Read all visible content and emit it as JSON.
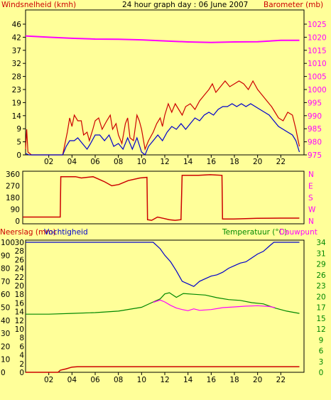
{
  "header": {
    "left_title": "Windsnelheid (kmh)",
    "center_title": "24 hour graph day : 06 June 2007",
    "right_title": "Barometer (mb)"
  },
  "panel3": {
    "left_title_1": "Neerslag (mm)",
    "left_title_2": "Vochtigheid",
    "right_title_1": "Temperatuur (°C)",
    "right_title_2": "Dauwpunt"
  },
  "colors": {
    "background": "#ffff99",
    "frame": "#000000",
    "grid": "#c8c870",
    "title_red": "#cc0000",
    "pressure": "#ff00ff",
    "wind_gust": "#cc0000",
    "wind_avg": "#0000cc",
    "direction": "#cc0000",
    "humidity": "#0000cc",
    "temperature": "#008800",
    "dewpoint": "#ff00ff",
    "rain": "#cc0000",
    "right_green": "#008800"
  },
  "chart_data": [
    {
      "type": "line",
      "x_ticks": [
        "02",
        "04",
        "06",
        "08",
        "10",
        "12",
        "14",
        "16",
        "18",
        "20",
        "22"
      ],
      "x_range_hours": [
        0,
        24
      ],
      "left_axis": {
        "ticks": [
          "0",
          "5",
          "9",
          "14",
          "19",
          "23",
          "28",
          "32",
          "37",
          "42",
          "46"
        ],
        "range": [
          0,
          46
        ]
      },
      "right_axis": {
        "ticks": [
          "975",
          "980",
          "985",
          "990",
          "995",
          "1000",
          "1005",
          "1010",
          "1015",
          "1020",
          "1025"
        ],
        "range": [
          975,
          1025
        ]
      },
      "series": [
        {
          "axis": "right",
          "points": [
            [
              0,
              1020.5
            ],
            [
              2,
              1020
            ],
            [
              4,
              1019.6
            ],
            [
              6,
              1019.3
            ],
            [
              8,
              1019.2
            ],
            [
              10,
              1019
            ],
            [
              12,
              1018.6
            ],
            [
              14,
              1018.2
            ],
            [
              16,
              1018
            ],
            [
              18,
              1018.2
            ],
            [
              20,
              1018.3
            ],
            [
              22,
              1018.8
            ],
            [
              23.6,
              1018.8
            ]
          ]
        },
        {
          "axis": "left",
          "points": [
            [
              0,
              2
            ],
            [
              0.1,
              9
            ],
            [
              0.2,
              1
            ],
            [
              0.5,
              0
            ],
            [
              3.2,
              0
            ],
            [
              3.4,
              4
            ],
            [
              3.6,
              8
            ],
            [
              3.8,
              13
            ],
            [
              4,
              10
            ],
            [
              4.2,
              14
            ],
            [
              4.5,
              12
            ],
            [
              4.8,
              12
            ],
            [
              5,
              7
            ],
            [
              5.3,
              8
            ],
            [
              5.5,
              5
            ],
            [
              5.8,
              9
            ],
            [
              6,
              12
            ],
            [
              6.3,
              13
            ],
            [
              6.6,
              9
            ],
            [
              7,
              12
            ],
            [
              7.3,
              14
            ],
            [
              7.5,
              9
            ],
            [
              7.8,
              11
            ],
            [
              8,
              7
            ],
            [
              8.3,
              4
            ],
            [
              8.6,
              11
            ],
            [
              8.8,
              13
            ],
            [
              9,
              6
            ],
            [
              9.3,
              5
            ],
            [
              9.6,
              14
            ],
            [
              9.8,
              12
            ],
            [
              10,
              9
            ],
            [
              10.3,
              2
            ],
            [
              10.6,
              5
            ],
            [
              11,
              8
            ],
            [
              11.3,
              11
            ],
            [
              11.6,
              13
            ],
            [
              11.8,
              10
            ],
            [
              12,
              14
            ],
            [
              12.3,
              18
            ],
            [
              12.6,
              15
            ],
            [
              12.9,
              18
            ],
            [
              13.2,
              16
            ],
            [
              13.5,
              14
            ],
            [
              13.8,
              17
            ],
            [
              14.2,
              18
            ],
            [
              14.6,
              16
            ],
            [
              15,
              19
            ],
            [
              15.4,
              21
            ],
            [
              15.8,
              23
            ],
            [
              16.1,
              25
            ],
            [
              16.4,
              22
            ],
            [
              16.8,
              24
            ],
            [
              17.2,
              26
            ],
            [
              17.6,
              24
            ],
            [
              18,
              25
            ],
            [
              18.4,
              26
            ],
            [
              18.8,
              25
            ],
            [
              19.2,
              23
            ],
            [
              19.6,
              26
            ],
            [
              20,
              23
            ],
            [
              20.4,
              21
            ],
            [
              20.8,
              19
            ],
            [
              21.2,
              17
            ],
            [
              21.5,
              15
            ],
            [
              21.8,
              13
            ],
            [
              22.2,
              12
            ],
            [
              22.6,
              15
            ],
            [
              23,
              14
            ],
            [
              23.3,
              9
            ],
            [
              23.5,
              5
            ],
            [
              23.6,
              3
            ]
          ]
        },
        {
          "axis": "left",
          "points": [
            [
              0,
              0.5
            ],
            [
              0.3,
              0
            ],
            [
              3.2,
              0
            ],
            [
              3.5,
              3
            ],
            [
              3.8,
              5
            ],
            [
              4.2,
              5
            ],
            [
              4.5,
              6
            ],
            [
              4.9,
              4
            ],
            [
              5.3,
              2
            ],
            [
              5.6,
              4
            ],
            [
              6,
              7
            ],
            [
              6.4,
              7
            ],
            [
              6.8,
              5
            ],
            [
              7.2,
              7
            ],
            [
              7.6,
              3
            ],
            [
              8,
              4
            ],
            [
              8.4,
              2
            ],
            [
              8.8,
              6
            ],
            [
              9.2,
              2
            ],
            [
              9.6,
              6
            ],
            [
              10,
              1
            ],
            [
              10.3,
              0
            ],
            [
              10.6,
              3
            ],
            [
              11,
              5
            ],
            [
              11.4,
              7
            ],
            [
              11.8,
              5
            ],
            [
              12.2,
              8
            ],
            [
              12.6,
              10
            ],
            [
              13,
              9
            ],
            [
              13.4,
              11
            ],
            [
              13.8,
              9
            ],
            [
              14.2,
              11
            ],
            [
              14.6,
              13
            ],
            [
              15,
              12
            ],
            [
              15.4,
              14
            ],
            [
              15.8,
              15
            ],
            [
              16.2,
              14
            ],
            [
              16.6,
              16
            ],
            [
              17,
              17
            ],
            [
              17.4,
              17
            ],
            [
              17.8,
              18
            ],
            [
              18.2,
              17
            ],
            [
              18.6,
              18
            ],
            [
              19,
              17
            ],
            [
              19.4,
              18
            ],
            [
              19.8,
              17
            ],
            [
              20.2,
              16
            ],
            [
              20.6,
              15
            ],
            [
              21,
              14
            ],
            [
              21.4,
              12
            ],
            [
              21.8,
              10
            ],
            [
              22.2,
              9
            ],
            [
              22.6,
              8
            ],
            [
              23,
              7
            ],
            [
              23.3,
              5
            ],
            [
              23.6,
              1
            ]
          ]
        }
      ]
    },
    {
      "type": "line",
      "x_range_hours": [
        0,
        24
      ],
      "left_axis": {
        "ticks": [
          "0",
          "90",
          "180",
          "270",
          "360"
        ],
        "range": [
          0,
          360
        ]
      },
      "right_axis_labels": [
        "N",
        "W",
        "S",
        "E",
        "N"
      ],
      "series": [
        {
          "axis": "left",
          "points": [
            [
              0,
              30
            ],
            [
              3.2,
              30
            ],
            [
              3.25,
              340
            ],
            [
              4.5,
              340
            ],
            [
              5,
              330
            ],
            [
              6,
              340
            ],
            [
              6.5,
              320
            ],
            [
              7,
              300
            ],
            [
              7.6,
              270
            ],
            [
              8.2,
              280
            ],
            [
              9,
              310
            ],
            [
              10,
              330
            ],
            [
              10.6,
              335
            ],
            [
              10.65,
              10
            ],
            [
              11,
              5
            ],
            [
              11.5,
              30
            ],
            [
              12,
              20
            ],
            [
              12.5,
              10
            ],
            [
              13,
              5
            ],
            [
              13.5,
              10
            ],
            [
              13.6,
              350
            ],
            [
              15,
              350
            ],
            [
              16,
              355
            ],
            [
              17,
              350
            ],
            [
              17.05,
              15
            ],
            [
              18,
              15
            ],
            [
              20,
              20
            ],
            [
              22,
              22
            ],
            [
              23.6,
              22
            ]
          ]
        }
      ]
    },
    {
      "type": "line",
      "x_ticks": [
        "02",
        "04",
        "06",
        "08",
        "10",
        "12",
        "14",
        "16",
        "18",
        "20",
        "22"
      ],
      "x_range_hours": [
        0,
        24
      ],
      "left_axis_rain": {
        "ticks": [
          "0",
          "2",
          "4",
          "6",
          "8",
          "10",
          "12",
          "14",
          "16",
          "18",
          "20",
          "22",
          "24",
          "26",
          "28",
          "30"
        ],
        "range": [
          0,
          30
        ]
      },
      "left_axis_humidity": {
        "ticks": [
          "0",
          "10",
          "20",
          "30",
          "40",
          "50",
          "60",
          "70",
          "80",
          "90",
          "100"
        ],
        "range": [
          0,
          100
        ]
      },
      "right_axis": {
        "ticks": [
          "0",
          "3",
          "6",
          "9",
          "12",
          "15",
          "17",
          "20",
          "23",
          "26",
          "29",
          "31",
          "34"
        ],
        "range": [
          0,
          34
        ]
      },
      "series": [
        {
          "axis": "humidity",
          "points": [
            [
              0,
              100
            ],
            [
              11,
              100
            ],
            [
              11.6,
              95
            ],
            [
              12,
              90
            ],
            [
              12.5,
              85
            ],
            [
              13,
              78
            ],
            [
              13.5,
              70
            ],
            [
              14,
              68
            ],
            [
              14.5,
              66
            ],
            [
              15,
              70
            ],
            [
              15.5,
              72
            ],
            [
              16,
              74
            ],
            [
              16.5,
              75
            ],
            [
              17,
              77
            ],
            [
              17.5,
              80
            ],
            [
              18,
              82
            ],
            [
              18.5,
              84
            ],
            [
              19,
              85
            ],
            [
              19.5,
              88
            ],
            [
              20,
              91
            ],
            [
              20.5,
              93
            ],
            [
              21,
              97
            ],
            [
              21.4,
              100
            ],
            [
              23.6,
              100
            ]
          ]
        },
        {
          "axis": "right",
          "points": [
            [
              0,
              15.2
            ],
            [
              2,
              15.2
            ],
            [
              4,
              15.4
            ],
            [
              6,
              15.6
            ],
            [
              8,
              16.0
            ],
            [
              10,
              17.0
            ],
            [
              11,
              18.4
            ],
            [
              11.6,
              19.2
            ],
            [
              12,
              20.5
            ],
            [
              12.4,
              20.8
            ],
            [
              13,
              19.6
            ],
            [
              13.6,
              20.6
            ],
            [
              14.5,
              20.4
            ],
            [
              15.5,
              20.2
            ],
            [
              16.5,
              19.5
            ],
            [
              17.5,
              19.0
            ],
            [
              18.5,
              18.8
            ],
            [
              19.5,
              18.2
            ],
            [
              20.5,
              17.9
            ],
            [
              21.5,
              16.8
            ],
            [
              22.5,
              16.0
            ],
            [
              23.6,
              15.4
            ]
          ]
        },
        {
          "axis": "right",
          "points": [
            [
              11,
              18.3
            ],
            [
              11.6,
              18.9
            ],
            [
              12,
              18.4
            ],
            [
              12.5,
              17.5
            ],
            [
              13,
              16.8
            ],
            [
              13.5,
              16.4
            ],
            [
              14,
              16.1
            ],
            [
              14.5,
              16.6
            ],
            [
              15,
              16.2
            ],
            [
              16,
              16.4
            ],
            [
              17,
              16.9
            ],
            [
              18,
              17.1
            ],
            [
              19,
              17.3
            ],
            [
              20,
              17.4
            ],
            [
              21,
              17.2
            ],
            [
              21.5,
              16.9
            ]
          ]
        },
        {
          "axis": "rain",
          "points": [
            [
              0,
              0
            ],
            [
              2.8,
              0
            ],
            [
              3,
              0.5
            ],
            [
              3.5,
              0.8
            ],
            [
              4,
              1.2
            ],
            [
              4.5,
              1.3
            ],
            [
              23.6,
              1.3
            ]
          ]
        }
      ]
    }
  ]
}
